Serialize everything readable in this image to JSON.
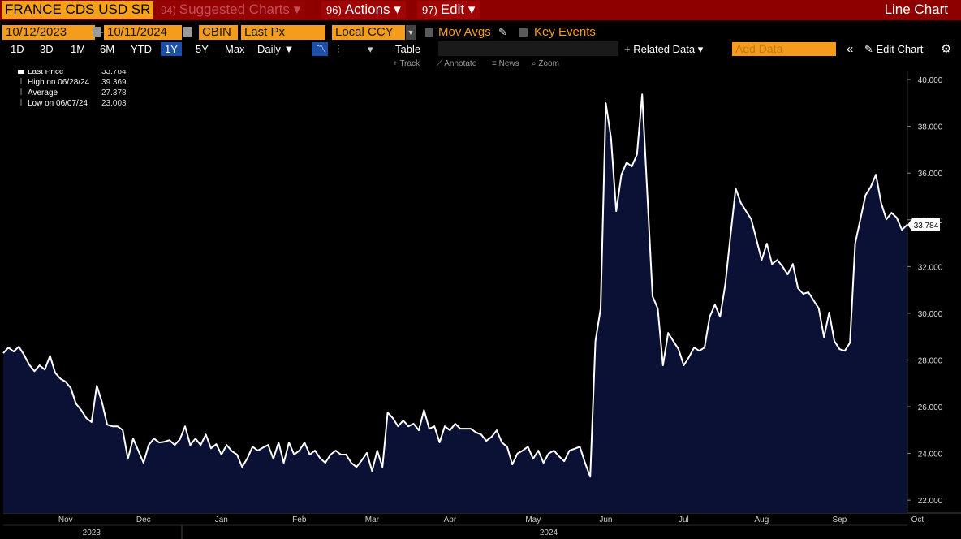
{
  "header": {
    "security": "FRANCE CDS USD SR",
    "menu": [
      {
        "key": "94)",
        "label": "Suggested Charts"
      },
      {
        "key": "96)",
        "label": "Actions"
      },
      {
        "key": "97)",
        "label": "Edit"
      }
    ],
    "view": "Line Chart"
  },
  "controls": {
    "start_date": "10/12/2023",
    "separator": "-",
    "end_date": "10/11/2024",
    "source": "CBIN",
    "field": "Last Px",
    "currency": "Local CCY",
    "mov_avgs": "Mov Avgs",
    "key_events": "Key Events"
  },
  "toolbar": {
    "ranges": [
      "1D",
      "3D",
      "1M",
      "6M",
      "YTD",
      "1Y",
      "5Y",
      "Max"
    ],
    "selected_range": "1Y",
    "frequency": "Daily",
    "table": "Table",
    "related_data": "Related Data",
    "add_data": "Add Data",
    "edit_chart": "Edit Chart",
    "tools": [
      "Track",
      "Annotate",
      "News",
      "Zoom"
    ]
  },
  "chart_data": {
    "type": "line",
    "color": "#ffffff",
    "fill": "#0b1035",
    "legend": [
      {
        "label": "Last Price",
        "value": 33.784
      },
      {
        "label": "High on 06/28/24",
        "value": 39.369
      },
      {
        "label": "Average",
        "value": 27.378
      },
      {
        "label": "Low on 06/07/24",
        "value": 23.003
      }
    ],
    "categories": [
      null,
      null,
      null,
      null,
      null,
      null,
      null,
      null,
      null,
      null,
      null,
      null,
      "Nov",
      null,
      null,
      null,
      null,
      null,
      null,
      null,
      null,
      null,
      null,
      null,
      null,
      null,
      null,
      "Dec",
      null,
      null,
      null,
      null,
      null,
      null,
      null,
      null,
      null,
      null,
      null,
      null,
      null,
      null,
      "Jan",
      null,
      null,
      null,
      null,
      null,
      null,
      null,
      null,
      null,
      null,
      null,
      null,
      null,
      null,
      "Feb",
      null,
      null,
      null,
      null,
      null,
      null,
      null,
      null,
      null,
      null,
      null,
      null,
      null,
      "Mar",
      null,
      null,
      null,
      null,
      null,
      null,
      null,
      null,
      null,
      null,
      null,
      null,
      null,
      null,
      "Apr",
      null,
      null,
      null,
      null,
      null,
      null,
      null,
      null,
      null,
      null,
      null,
      null,
      null,
      null,
      null,
      "May",
      null,
      null,
      null,
      null,
      null,
      null,
      null,
      null,
      null,
      null,
      null,
      null,
      null,
      "Jun",
      null,
      null,
      null,
      null,
      null,
      null,
      null,
      null,
      null,
      null,
      null,
      null,
      null,
      null,
      "Jul",
      null,
      null,
      null,
      null,
      null,
      null,
      null,
      null,
      null,
      null,
      null,
      null,
      null,
      null,
      "Aug",
      null,
      null,
      null,
      null,
      null,
      null,
      null,
      null,
      null,
      null,
      null,
      null,
      null,
      null,
      "Sep",
      null,
      null,
      null,
      null,
      null,
      null,
      null,
      null,
      null,
      null,
      null,
      null,
      null,
      null,
      "Oct"
    ],
    "year_labels": [
      null,
      null,
      null,
      null,
      null,
      null,
      null,
      null,
      null,
      null,
      null,
      null,
      null,
      null,
      null,
      null,
      null,
      "2023",
      null,
      null,
      null,
      null,
      null,
      null,
      null,
      null,
      null,
      null,
      null,
      null,
      null,
      null,
      null,
      null,
      null,
      null,
      null,
      null,
      null,
      null,
      null,
      null,
      null,
      null,
      null,
      null,
      null,
      null,
      null,
      null,
      null,
      null,
      null,
      null,
      null,
      null,
      null,
      null,
      null,
      null,
      null,
      null,
      null,
      null,
      null,
      null,
      null,
      null,
      null,
      null,
      null,
      null,
      null,
      null,
      null,
      null,
      null,
      null,
      null,
      null,
      null,
      null,
      null,
      null,
      null,
      null,
      null,
      null,
      null,
      null,
      null,
      null,
      null,
      null,
      null,
      null,
      null,
      null,
      null,
      null,
      null,
      null,
      null,
      null,
      null,
      "2024",
      null,
      null,
      null,
      null,
      null,
      null,
      null,
      null,
      null,
      null,
      null,
      null,
      null,
      null,
      null,
      null,
      null,
      null,
      null,
      null,
      null,
      null,
      null,
      null,
      null,
      null,
      null,
      null,
      null,
      null,
      null,
      null,
      null,
      null,
      null,
      null,
      null,
      null,
      null,
      null,
      null,
      null,
      null,
      null,
      null,
      null,
      null,
      null,
      null,
      null,
      null,
      null,
      null,
      null,
      null,
      null,
      null,
      null,
      null,
      null,
      null,
      null,
      null,
      null,
      null,
      null,
      null,
      null,
      null,
      null,
      null
    ],
    "values": [
      28.29,
      28.53,
      28.36,
      28.57,
      28.22,
      27.8,
      27.52,
      27.77,
      27.59,
      28.18,
      27.45,
      27.2,
      27.07,
      26.8,
      26.13,
      25.86,
      25.51,
      25.34,
      26.9,
      26.2,
      25.23,
      25.16,
      25.16,
      25.0,
      23.77,
      24.64,
      24.12,
      23.6,
      24.36,
      24.64,
      24.47,
      24.5,
      24.57,
      24.36,
      24.6,
      25.16,
      24.36,
      24.64,
      24.36,
      24.81,
      24.22,
      24.4,
      23.95,
      24.36,
      24.1,
      23.95,
      23.42,
      23.8,
      24.29,
      24.12,
      24.25,
      24.36,
      23.77,
      24.47,
      23.6,
      24.47,
      23.95,
      24.12,
      24.47,
      23.95,
      24.12,
      23.8,
      23.6,
      23.95,
      24.12,
      23.95,
      23.95,
      23.6,
      23.42,
      23.7,
      24.02,
      23.25,
      24.12,
      23.42,
      25.75,
      25.51,
      25.16,
      25.41,
      25.16,
      25.27,
      24.99,
      25.86,
      25.06,
      25.16,
      24.47,
      25.16,
      24.99,
      25.27,
      25.06,
      25.06,
      25.06,
      24.9,
      24.81,
      24.54,
      24.71,
      24.99,
      24.47,
      24.29,
      23.53,
      24.0,
      24.12,
      24.29,
      23.77,
      24.12,
      23.6,
      24.0,
      24.12,
      23.88,
      23.67,
      24.12,
      24.2,
      24.29,
      23.6,
      23.003,
      28.81,
      30.2,
      38.99,
      37.5,
      34.37,
      35.93,
      36.45,
      36.28,
      36.8,
      39.369,
      35.06,
      30.72,
      30.2,
      27.77,
      29.16,
      28.81,
      28.46,
      27.77,
      28.12,
      28.53,
      28.39,
      28.53,
      29.85,
      30.37,
      29.85,
      31.24,
      33.33,
      35.34,
      34.72,
      34.37,
      34.02,
      33.15,
      32.28,
      32.98,
      32.11,
      32.28,
      32.01,
      31.66,
      32.11,
      31.07,
      30.83,
      30.9,
      30.55,
      30.2,
      28.98,
      30.03,
      28.81,
      28.46,
      28.39,
      28.74,
      32.98,
      34.02,
      35.06,
      35.41,
      35.93,
      34.72,
      34.02,
      34.3,
      34.09,
      33.57,
      33.784,
      null,
      null
    ],
    "ylim": [
      21.45,
      40.35
    ],
    "yticks": [
      {
        "value": 22,
        "label": "22.000"
      },
      {
        "value": 24,
        "label": "24.000"
      },
      {
        "value": 26,
        "label": "26.000"
      },
      {
        "value": 28,
        "label": "28.000"
      },
      {
        "value": 30,
        "label": "30.000"
      },
      {
        "value": 32,
        "label": "32.000"
      },
      {
        "value": 34,
        "label": "34.000"
      },
      {
        "value": 36,
        "label": "36.000"
      },
      {
        "value": 38,
        "label": "38.000"
      },
      {
        "value": 40,
        "label": "40.000"
      }
    ]
  }
}
